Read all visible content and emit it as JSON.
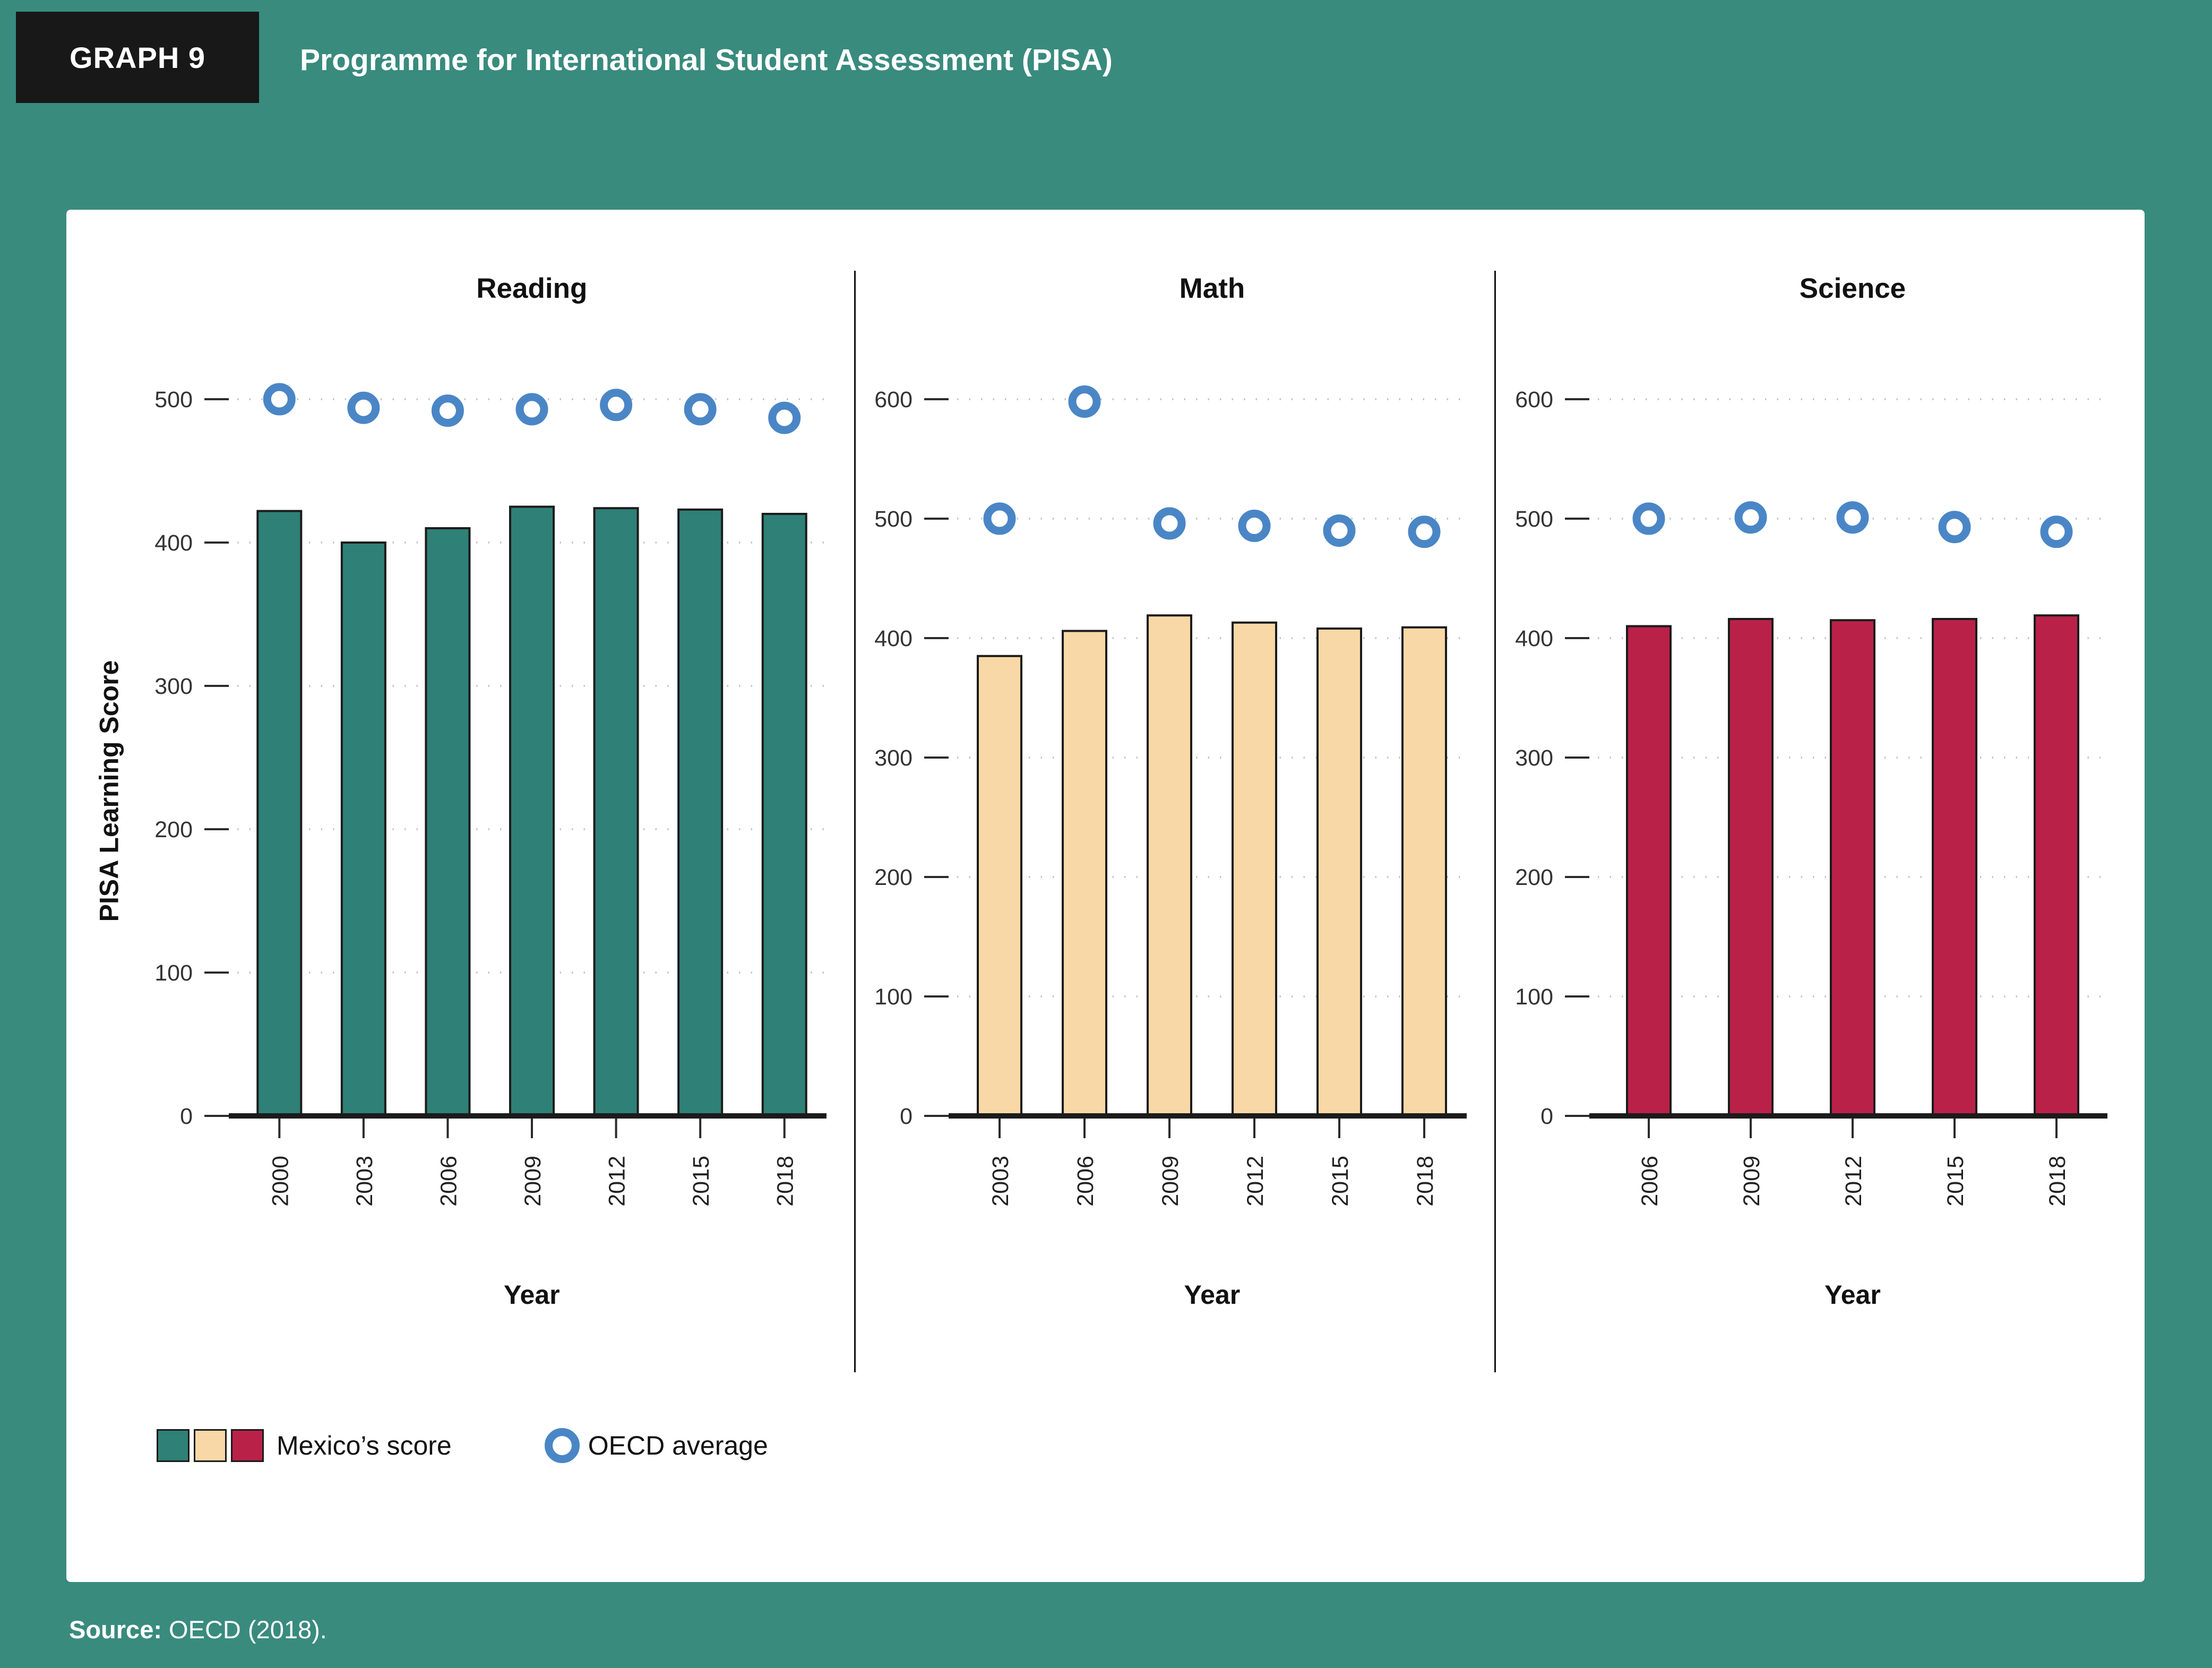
{
  "header": {
    "badge": "GRAPH 9",
    "title": "Programme for International Student Assessment (PISA)"
  },
  "ylabel": "PISA Learning Score",
  "legend": {
    "mexico_label": "Mexico’s score",
    "oecd_label": "OECD average",
    "bar_colors": [
      "#2f8076",
      "#f9d8a7",
      "#ba2149"
    ],
    "oecd_color": "#4a86c6"
  },
  "source": {
    "prefix": "Source:",
    "text": " OECD (2018)."
  },
  "chart_data": [
    {
      "type": "bar",
      "title": "Reading",
      "xlabel": "Year",
      "categories": [
        "2000",
        "2003",
        "2006",
        "2009",
        "2012",
        "2015",
        "2018"
      ],
      "series": [
        {
          "name": "Mexico's score",
          "values": [
            422,
            400,
            410,
            425,
            424,
            423,
            420
          ]
        },
        {
          "name": "OECD average",
          "values": [
            500,
            494,
            492,
            493,
            496,
            493,
            487
          ]
        }
      ],
      "ylim": [
        0,
        500
      ],
      "yticks": [
        0,
        100,
        200,
        300,
        400,
        500
      ],
      "bar_color": "#2f8076",
      "grid": "dotted",
      "legend_position": "bottom"
    },
    {
      "type": "bar",
      "title": "Math",
      "xlabel": "Year",
      "categories": [
        "2003",
        "2006",
        "2009",
        "2012",
        "2015",
        "2018"
      ],
      "series": [
        {
          "name": "Mexico's score",
          "values": [
            385,
            406,
            419,
            413,
            408,
            409
          ]
        },
        {
          "name": "OECD average",
          "values": [
            500,
            598,
            496,
            494,
            490,
            489
          ]
        }
      ],
      "ylim": [
        0,
        600
      ],
      "yticks": [
        0,
        100,
        200,
        300,
        400,
        500,
        600
      ],
      "bar_color": "#f9d8a7",
      "grid": "dotted",
      "legend_position": "bottom"
    },
    {
      "type": "bar",
      "title": "Science",
      "xlabel": "Year",
      "categories": [
        "2006",
        "2009",
        "2012",
        "2015",
        "2018"
      ],
      "series": [
        {
          "name": "Mexico's score",
          "values": [
            410,
            416,
            415,
            416,
            419
          ]
        },
        {
          "name": "OECD average",
          "values": [
            500,
            501,
            501,
            493,
            489
          ]
        }
      ],
      "ylim": [
        0,
        600
      ],
      "yticks": [
        0,
        100,
        200,
        300,
        400,
        500,
        600
      ],
      "bar_color": "#ba2149",
      "grid": "dotted",
      "legend_position": "bottom"
    }
  ]
}
